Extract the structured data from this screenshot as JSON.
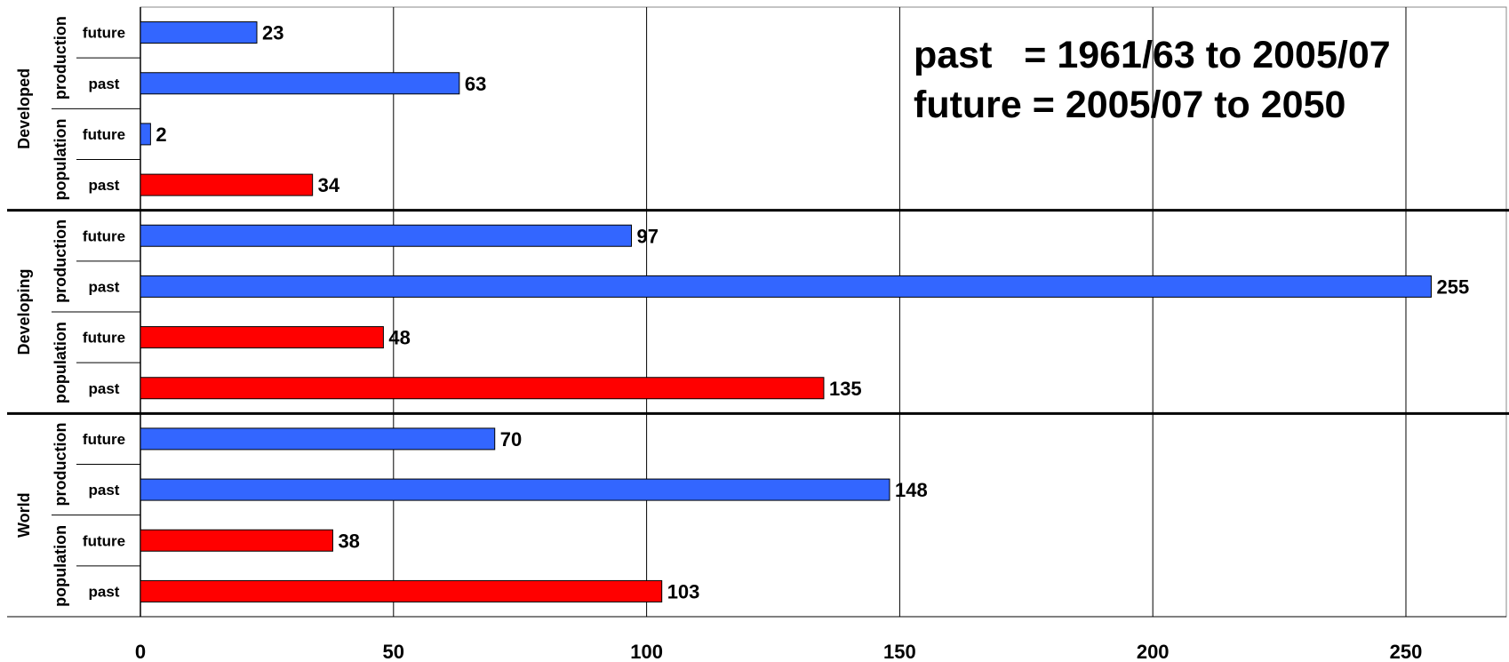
{
  "chart_data": {
    "type": "bar",
    "orientation": "horizontal",
    "groups": [
      {
        "name": "Developed",
        "subgroups": [
          {
            "name": "production",
            "bars": [
              {
                "label": "future",
                "value": 23,
                "color": "#3366FF"
              },
              {
                "label": "past",
                "value": 63,
                "color": "#3366FF"
              }
            ]
          },
          {
            "name": "population",
            "bars": [
              {
                "label": "future",
                "value": 2,
                "color": "#3366FF"
              },
              {
                "label": "past",
                "value": 34,
                "color": "#FF0000"
              }
            ]
          }
        ]
      },
      {
        "name": "Developing",
        "subgroups": [
          {
            "name": "production",
            "bars": [
              {
                "label": "future",
                "value": 97,
                "color": "#3366FF"
              },
              {
                "label": "past",
                "value": 255,
                "color": "#3366FF"
              }
            ]
          },
          {
            "name": "population",
            "bars": [
              {
                "label": "future",
                "value": 48,
                "color": "#FF0000"
              },
              {
                "label": "past",
                "value": 135,
                "color": "#FF0000"
              }
            ]
          }
        ]
      },
      {
        "name": "World",
        "subgroups": [
          {
            "name": "production",
            "bars": [
              {
                "label": "future",
                "value": 70,
                "color": "#3366FF"
              },
              {
                "label": "past",
                "value": 148,
                "color": "#3366FF"
              }
            ]
          },
          {
            "name": "population",
            "bars": [
              {
                "label": "future",
                "value": 38,
                "color": "#FF0000"
              },
              {
                "label": "past",
                "value": 103,
                "color": "#FF0000"
              }
            ]
          }
        ]
      }
    ],
    "xlim": [
      0,
      270
    ],
    "xticks": [
      0,
      50,
      100,
      150,
      200,
      250
    ],
    "grid": true,
    "annotation": {
      "line1": "past   = 1961/63 to 2005/07",
      "line2": "future = 2005/07 to 2050"
    }
  }
}
